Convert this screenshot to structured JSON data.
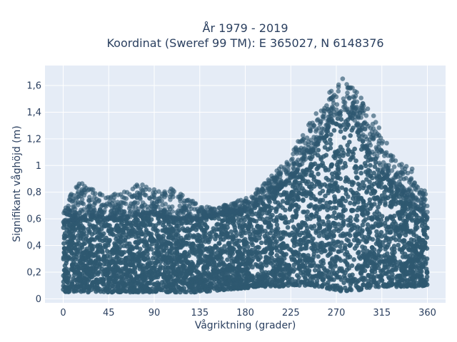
{
  "chart_data": {
    "type": "scatter",
    "title_line1": "År 1979 - 2019",
    "title_line2": "Koordinat (Sweref 99 TM): E 365027, N 6148376",
    "xlabel": "Vågriktning (grader)",
    "ylabel": "Signifikant våghöjd (m)",
    "xlim": [
      -18,
      378
    ],
    "ylim": [
      -0.03,
      1.75
    ],
    "x_ticks": [
      0,
      45,
      90,
      135,
      180,
      225,
      270,
      315,
      360
    ],
    "x_tick_labels": [
      "0",
      "45",
      "90",
      "135",
      "180",
      "225",
      "270",
      "315",
      "360"
    ],
    "y_ticks": [
      0,
      0.2,
      0.4,
      0.6,
      0.8,
      1.0,
      1.2,
      1.4,
      1.6
    ],
    "y_tick_labels": [
      "0",
      "0,2",
      "0,4",
      "0,6",
      "0,8",
      "1",
      "1,2",
      "1,4",
      "1,6"
    ],
    "grid": true,
    "marker_color": "#2e5870",
    "background_color": "#e5ecf6",
    "grid_color": "#ffffff",
    "envelope": {
      "direction_deg": [
        0,
        15,
        30,
        45,
        60,
        75,
        90,
        105,
        120,
        135,
        150,
        165,
        180,
        195,
        210,
        225,
        240,
        255,
        270,
        280,
        290,
        300,
        315,
        330,
        345,
        360
      ],
      "lower_m": [
        0.05,
        0.05,
        0.05,
        0.05,
        0.05,
        0.05,
        0.05,
        0.05,
        0.05,
        0.05,
        0.06,
        0.07,
        0.08,
        0.09,
        0.09,
        0.1,
        0.1,
        0.09,
        0.06,
        0.05,
        0.06,
        0.08,
        0.09,
        0.09,
        0.09,
        0.1
      ],
      "dense_upper_m": [
        0.58,
        0.6,
        0.62,
        0.6,
        0.6,
        0.63,
        0.63,
        0.6,
        0.6,
        0.6,
        0.62,
        0.64,
        0.66,
        0.72,
        0.8,
        0.9,
        1.05,
        1.2,
        1.38,
        1.42,
        1.3,
        1.12,
        0.95,
        0.82,
        0.72,
        0.6
      ],
      "max_m": [
        0.68,
        0.88,
        0.82,
        0.78,
        0.8,
        0.87,
        0.82,
        0.84,
        0.78,
        0.7,
        0.68,
        0.72,
        0.75,
        0.85,
        0.95,
        1.1,
        1.28,
        1.45,
        1.63,
        1.67,
        1.55,
        1.48,
        1.25,
        1.05,
        0.98,
        0.8
      ]
    }
  }
}
